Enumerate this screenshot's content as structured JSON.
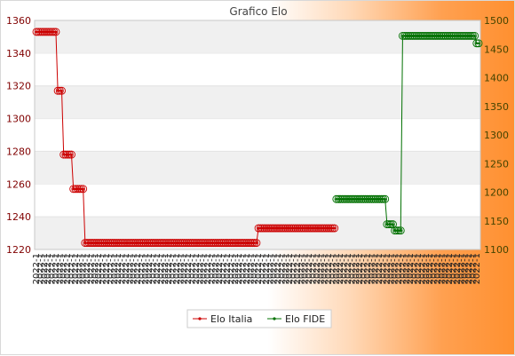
{
  "chart_data": {
    "type": "line",
    "title": "Grafico Elo",
    "xlabel": "",
    "ylabel": "",
    "y_left": {
      "ylim": [
        1220,
        1360
      ],
      "ticks": [
        1220,
        1240,
        1260,
        1280,
        1300,
        1320,
        1340,
        1360
      ]
    },
    "y_right": {
      "ylim": [
        1100,
        1500
      ],
      "ticks": [
        1100,
        1150,
        1200,
        1250,
        1300,
        1350,
        1400,
        1450,
        1500
      ]
    },
    "grid": "horizontal bands",
    "legend_position": "bottom-center",
    "n_points": 115,
    "series": [
      {
        "name": "Elo Italia",
        "axis": "left",
        "color": "#cc0000",
        "segments": [
          {
            "from": 0,
            "to": 10,
            "value": 1353
          },
          {
            "from": 11,
            "to": 13,
            "value": 1317
          },
          {
            "from": 14,
            "to": 18,
            "value": 1278
          },
          {
            "from": 19,
            "to": 24,
            "value": 1257
          },
          {
            "from": 25,
            "to": 113,
            "value": 1224
          }
        ]
      },
      {
        "name": "Elo FIDE",
        "axis": "right",
        "color": "#007000",
        "segments": [
          {
            "from": 0,
            "to": 113,
            "value": null
          }
        ]
      }
    ],
    "italia_tail": {
      "from": 114,
      "to": 153,
      "value": 1233
    },
    "fide_points": [
      {
        "from": 154,
        "to": 179,
        "value": 1188
      },
      {
        "from": 180,
        "to": 183,
        "value": 1144
      },
      {
        "from": 184,
        "to": 187,
        "value": 1133
      },
      {
        "from": 188,
        "to": 225,
        "value": 1473
      },
      {
        "from": 226,
        "to": 227,
        "value": 1460
      }
    ],
    "x_count": 228,
    "x_tick_label": "2022-1"
  }
}
